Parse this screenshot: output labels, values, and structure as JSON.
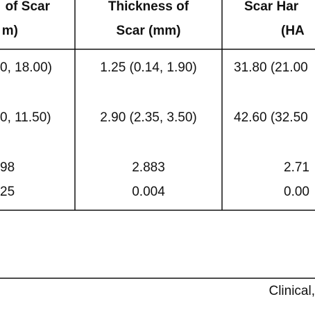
{
  "table": {
    "header": [
      [
        "of Scar",
        "m)"
      ],
      [
        "Thickness of",
        "Scar (mm)"
      ],
      [
        "Scar Har",
        "(HA"
      ]
    ],
    "rows": [
      [
        "0, 18.00)",
        "1.25 (0.14, 1.90)",
        "31.80 (21.00"
      ],
      [
        "0, 11.50)",
        "2.90 (2.35, 3.50)",
        "42.60 (32.50"
      ],
      [
        "98",
        "2.883",
        "2.71"
      ],
      [
        "25",
        "0.004",
        "0.00"
      ]
    ]
  },
  "footer": {
    "text": "Clinical,"
  }
}
